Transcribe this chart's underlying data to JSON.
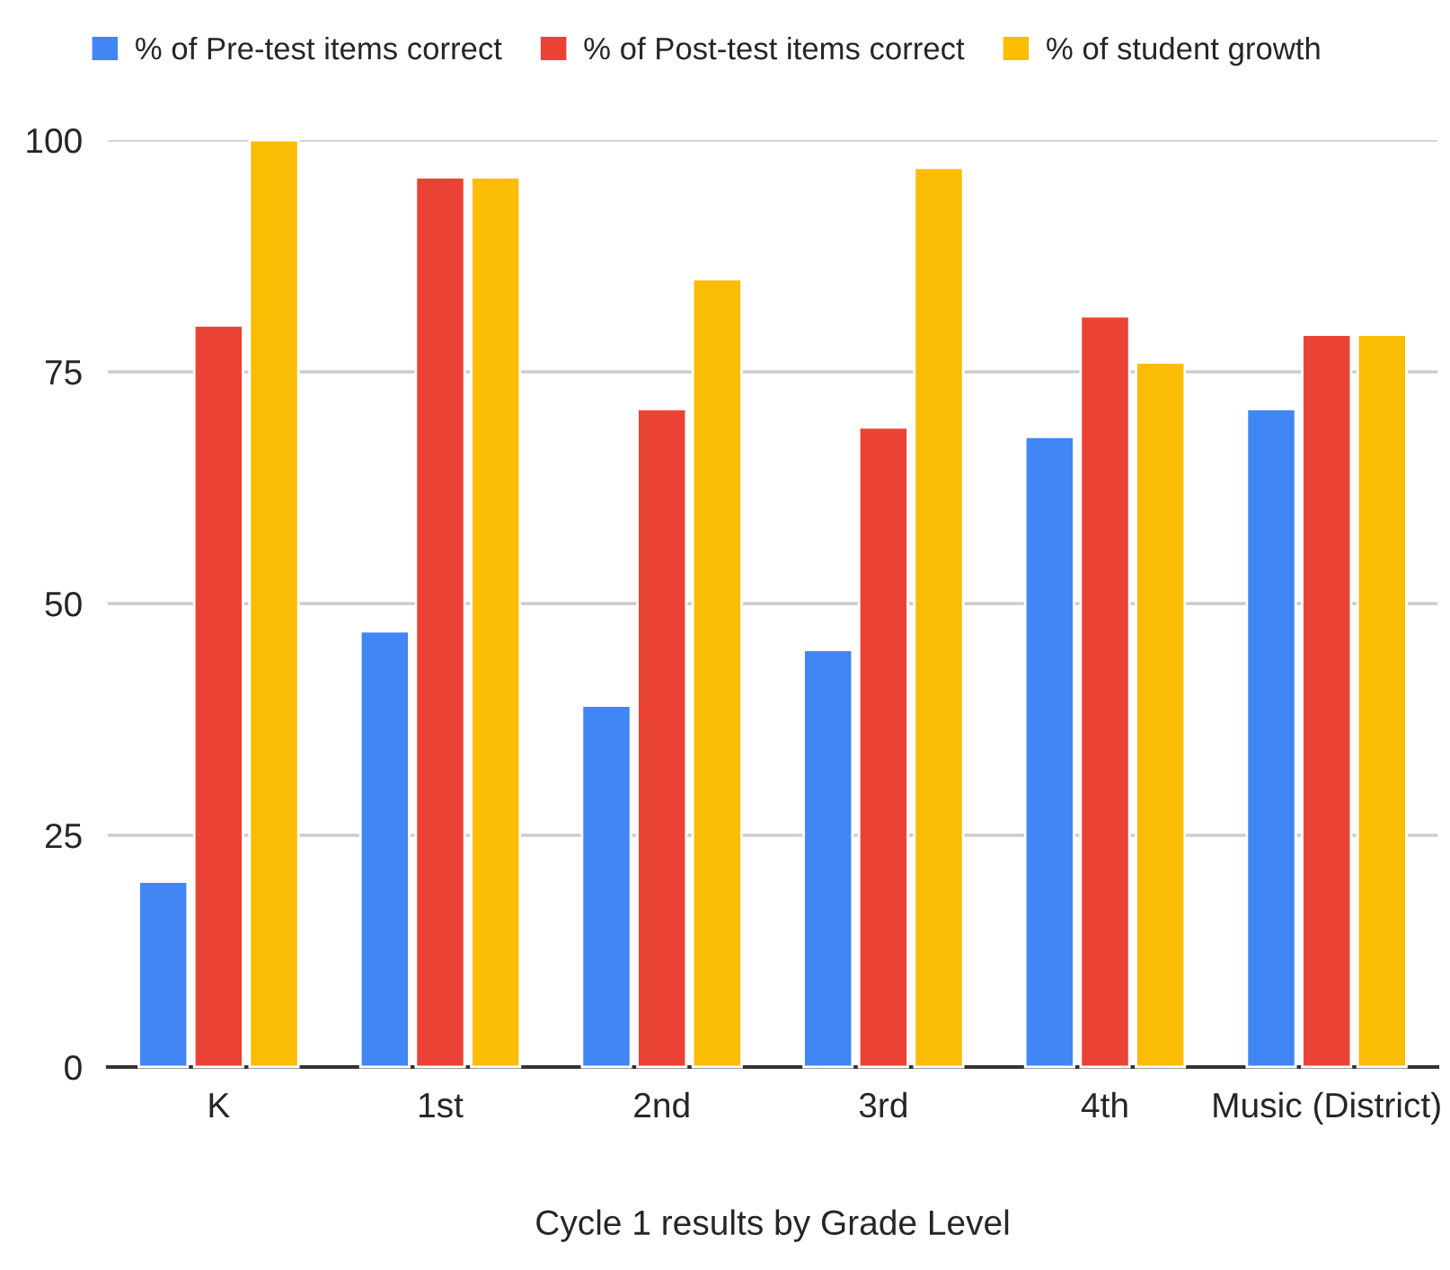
{
  "chart_data": {
    "type": "bar",
    "xlabel": "Cycle 1 results by Grade Level",
    "categories": [
      "K",
      "1st",
      "2nd",
      "3rd",
      "4th",
      "Music (District)"
    ],
    "series": [
      {
        "name": "% of Pre-test items correct",
        "color": "#4285f4",
        "values": [
          20,
          47,
          39,
          45,
          68,
          71
        ]
      },
      {
        "name": "% of Post-test items correct",
        "color": "#ea4335",
        "values": [
          80,
          96,
          71,
          69,
          81,
          79
        ]
      },
      {
        "name": "% of student growth",
        "color": "#fbbc04",
        "values": [
          100,
          96,
          85,
          97,
          76,
          79
        ]
      }
    ],
    "ylim": [
      0,
      100
    ],
    "yticks": [
      0,
      25,
      50,
      75,
      100
    ],
    "grid": "y",
    "legend": "top"
  }
}
